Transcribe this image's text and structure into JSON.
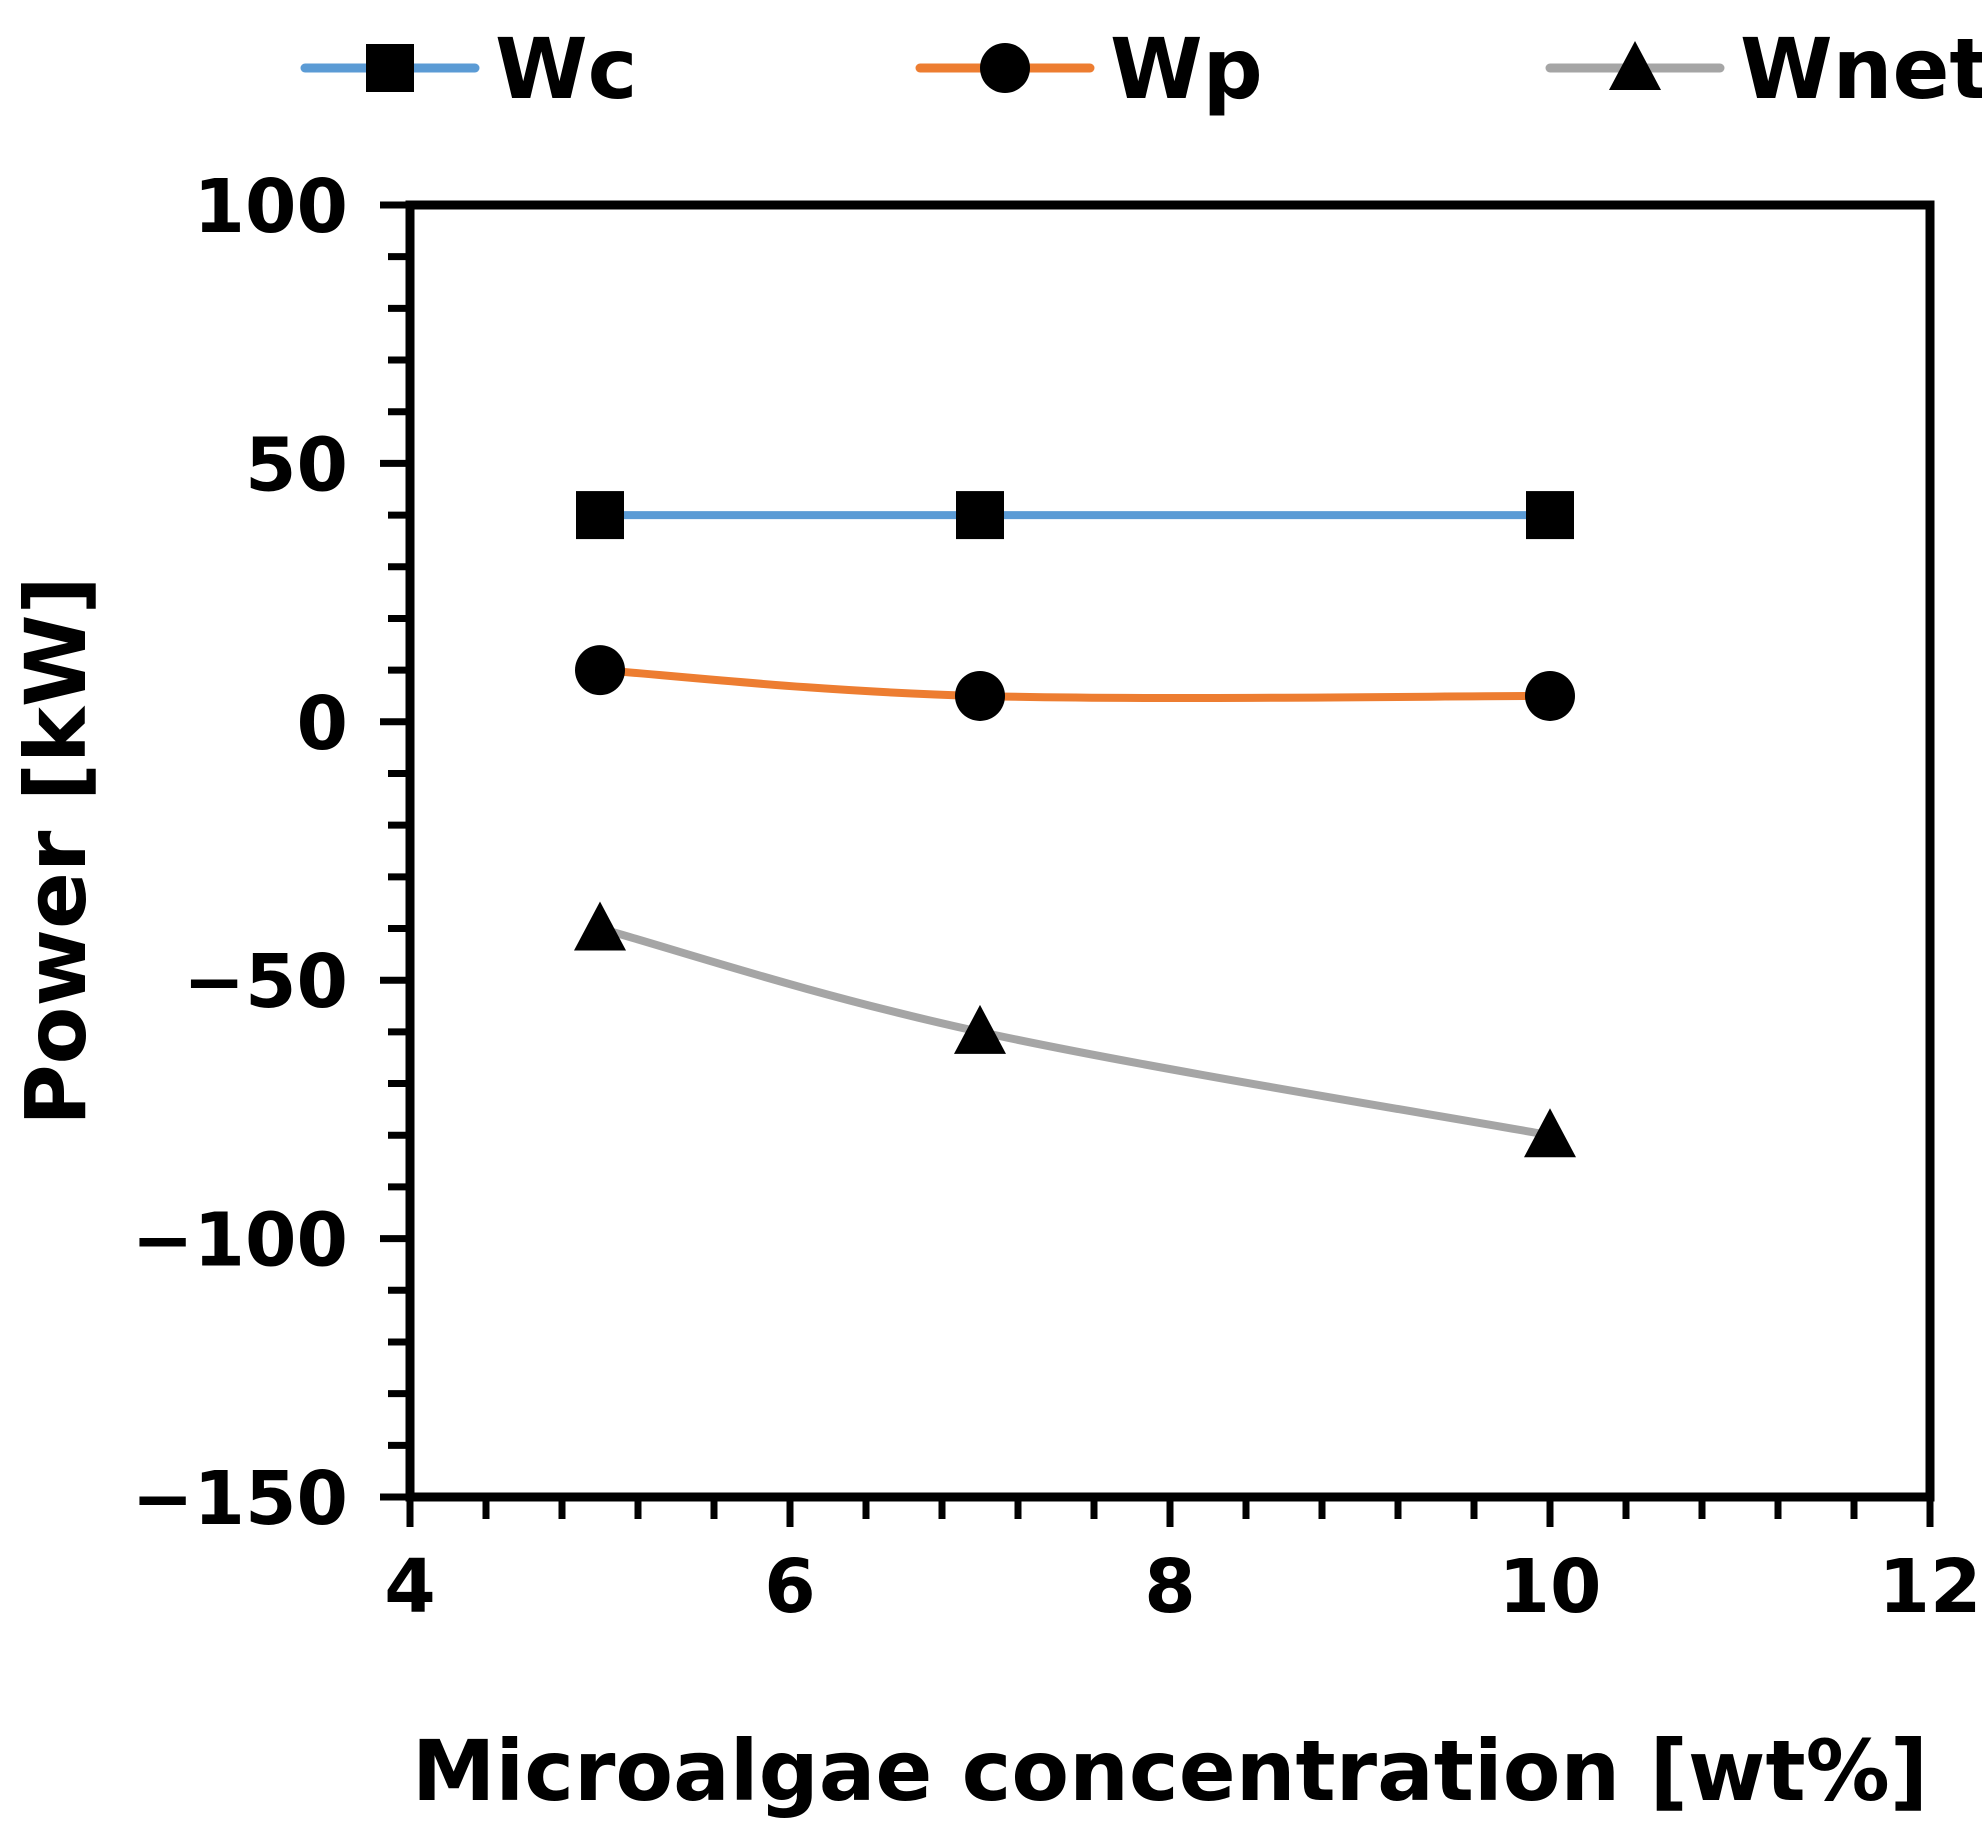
{
  "chart_data": {
    "type": "line",
    "title": "",
    "xlabel": "Microalgae concentration [wt%]",
    "ylabel": "Power [kW]",
    "xlim": [
      4,
      12
    ],
    "ylim": [
      -150,
      100
    ],
    "x_ticks": [
      4,
      6,
      8,
      10,
      12
    ],
    "x_tick_labels": [
      "4",
      "6",
      "8",
      "10",
      "12"
    ],
    "x_minor_step": 0.4,
    "y_ticks": [
      -150,
      -100,
      -50,
      0,
      50,
      100
    ],
    "y_tick_labels": [
      "−150",
      "−100",
      "−50",
      "0",
      "50",
      "100"
    ],
    "y_minor_step": 10,
    "grid": false,
    "legend_position": "top",
    "x": [
      5,
      7,
      10
    ],
    "series": [
      {
        "name": "Wc",
        "values": [
          40,
          40,
          40
        ],
        "color": "#5B9BD5",
        "marker": "square"
      },
      {
        "name": "Wp",
        "values": [
          10,
          5,
          5
        ],
        "color": "#ED7D31",
        "marker": "circle"
      },
      {
        "name": "Wnet",
        "values": [
          -40,
          -60,
          -80
        ],
        "color": "#A5A5A5",
        "marker": "triangle"
      }
    ]
  }
}
